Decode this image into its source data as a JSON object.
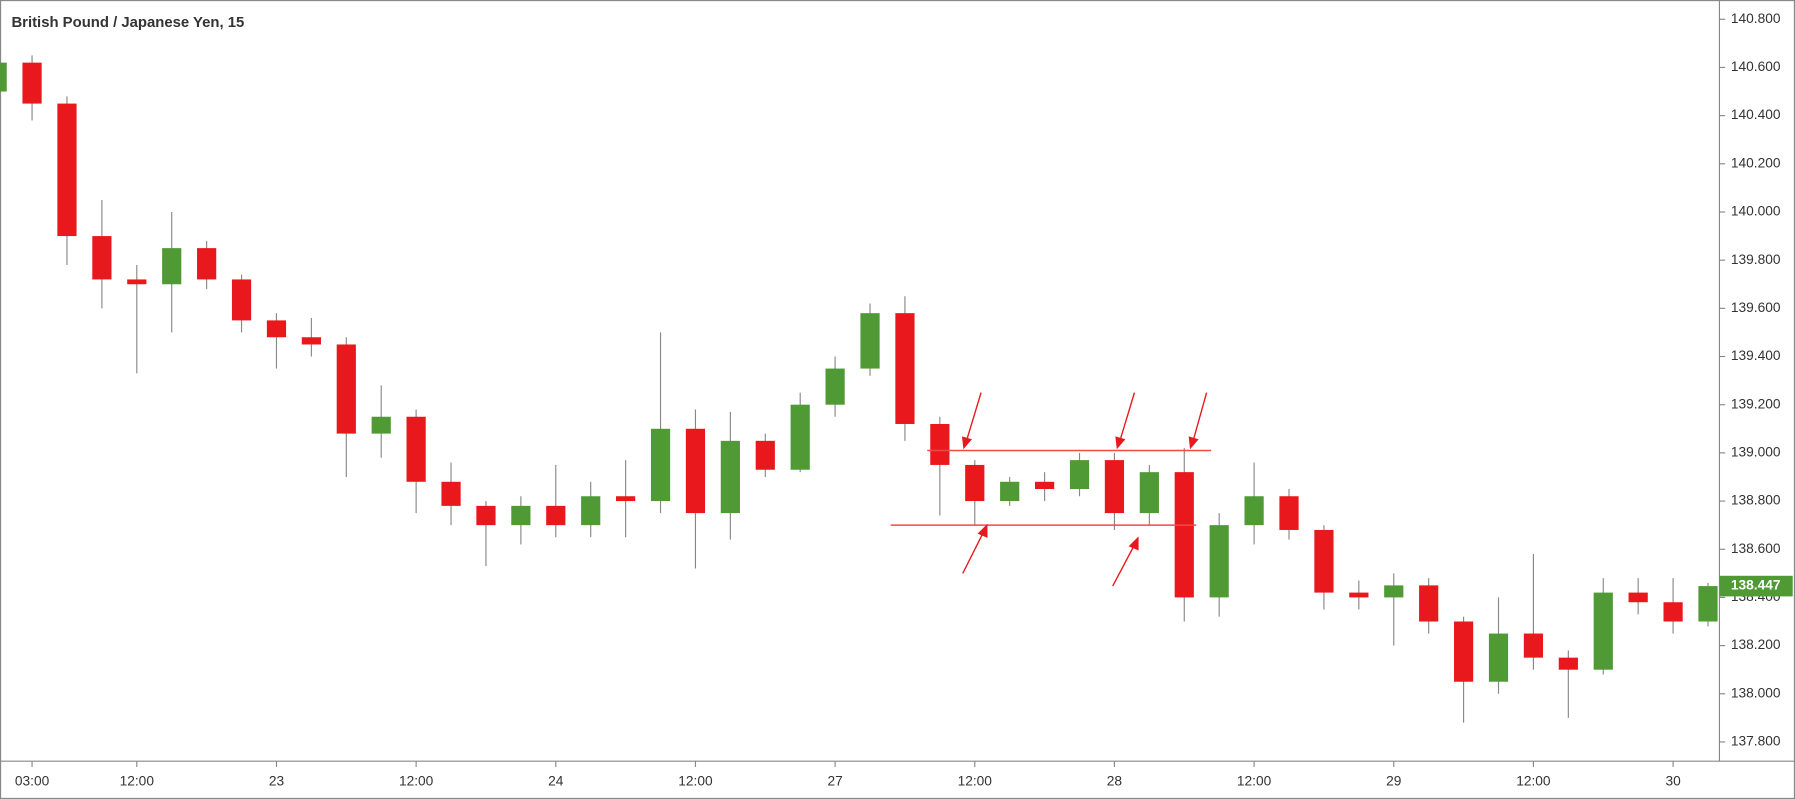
{
  "chart_data": {
    "type": "candlestick",
    "title": "British Pound / Japanese Yen, 15",
    "categories": [
      null,
      "03:00",
      null,
      null,
      "12:00",
      null,
      null,
      null,
      "23",
      null,
      null,
      null,
      "12:00",
      null,
      null,
      null,
      "24",
      null,
      null,
      null,
      "12:00",
      null,
      null,
      null,
      "27",
      null,
      null,
      null,
      "12:00",
      null,
      null,
      null,
      "28",
      null,
      null,
      null,
      "12:00",
      null,
      null,
      null,
      "29",
      null,
      null,
      null,
      "12:00",
      null,
      null,
      null,
      "30",
      null
    ],
    "open": [
      140.5,
      140.62,
      140.45,
      139.9,
      139.72,
      139.7,
      139.85,
      139.72,
      139.55,
      139.48,
      139.45,
      139.08,
      139.15,
      138.88,
      138.78,
      138.7,
      138.78,
      138.7,
      138.82,
      138.8,
      139.1,
      138.75,
      139.05,
      138.93,
      139.2,
      139.35,
      139.58,
      139.12,
      138.95,
      138.8,
      138.88,
      138.85,
      138.97,
      138.75,
      138.92,
      138.4,
      138.7,
      138.82,
      138.68,
      138.42,
      138.4,
      138.45,
      138.3,
      138.05,
      138.25,
      138.15,
      138.1,
      138.42,
      138.38,
      138.3
    ],
    "high": [
      140.72,
      140.65,
      140.48,
      140.05,
      139.78,
      140.0,
      139.88,
      139.74,
      139.58,
      139.56,
      139.48,
      139.28,
      139.18,
      138.96,
      138.8,
      138.82,
      138.95,
      138.88,
      138.97,
      139.5,
      139.18,
      139.17,
      139.08,
      139.25,
      139.4,
      139.62,
      139.65,
      139.15,
      138.97,
      138.9,
      138.92,
      139.0,
      139.0,
      138.95,
      139.02,
      138.75,
      138.96,
      138.85,
      138.7,
      138.47,
      138.5,
      138.48,
      138.32,
      138.4,
      138.58,
      138.18,
      138.48,
      138.48,
      138.48,
      138.46
    ],
    "low": [
      140.46,
      140.38,
      139.78,
      139.6,
      139.33,
      139.5,
      139.68,
      139.5,
      139.35,
      139.4,
      138.9,
      138.98,
      138.75,
      138.7,
      138.53,
      138.62,
      138.65,
      138.65,
      138.65,
      138.75,
      138.52,
      138.64,
      138.9,
      138.92,
      139.15,
      139.32,
      139.05,
      138.74,
      138.7,
      138.78,
      138.8,
      138.82,
      138.68,
      138.7,
      138.3,
      138.32,
      138.62,
      138.64,
      138.35,
      138.35,
      138.2,
      138.25,
      137.88,
      138.0,
      138.1,
      137.9,
      138.08,
      138.33,
      138.25,
      138.28
    ],
    "close": [
      140.62,
      140.45,
      139.9,
      139.72,
      139.7,
      139.85,
      139.72,
      139.55,
      139.48,
      139.45,
      139.08,
      139.15,
      138.88,
      138.78,
      138.7,
      138.78,
      138.7,
      138.82,
      138.8,
      139.1,
      138.75,
      139.05,
      138.93,
      139.2,
      139.35,
      139.58,
      139.12,
      138.95,
      138.8,
      138.88,
      138.85,
      138.97,
      138.75,
      138.92,
      138.4,
      138.7,
      138.82,
      138.68,
      138.42,
      138.4,
      138.45,
      138.3,
      138.05,
      138.25,
      138.15,
      138.1,
      138.42,
      138.38,
      138.3,
      138.447
    ],
    "up_color": "#4f9a35",
    "down_color": "#e8181c",
    "levels": [
      139.01,
      138.7
    ],
    "level_color": "#ef4a4a",
    "last_price": 138.447,
    "ylim": [
      137.72,
      140.88
    ],
    "yticks": [
      {
        "value": 137.8,
        "label": "137.800"
      },
      {
        "value": 138.0,
        "label": "138.000"
      },
      {
        "value": 138.2,
        "label": "138.200"
      },
      {
        "value": 138.4,
        "label": "138.400"
      },
      {
        "value": 138.6,
        "label": "138.600"
      },
      {
        "value": 138.8,
        "label": "138.800"
      },
      {
        "value": 139.0,
        "label": "139.000"
      },
      {
        "value": 139.2,
        "label": "139.200"
      },
      {
        "value": 139.4,
        "label": "139.400"
      },
      {
        "value": 139.6,
        "label": "139.600"
      },
      {
        "value": 139.8,
        "label": "139.800"
      },
      {
        "value": 140.0,
        "label": "140.000"
      },
      {
        "value": 140.2,
        "label": "140.200"
      },
      {
        "value": 140.4,
        "label": "140.400"
      },
      {
        "value": 140.6,
        "label": "140.600"
      },
      {
        "value": 140.8,
        "label": "140.800"
      }
    ],
    "grid": false
  }
}
